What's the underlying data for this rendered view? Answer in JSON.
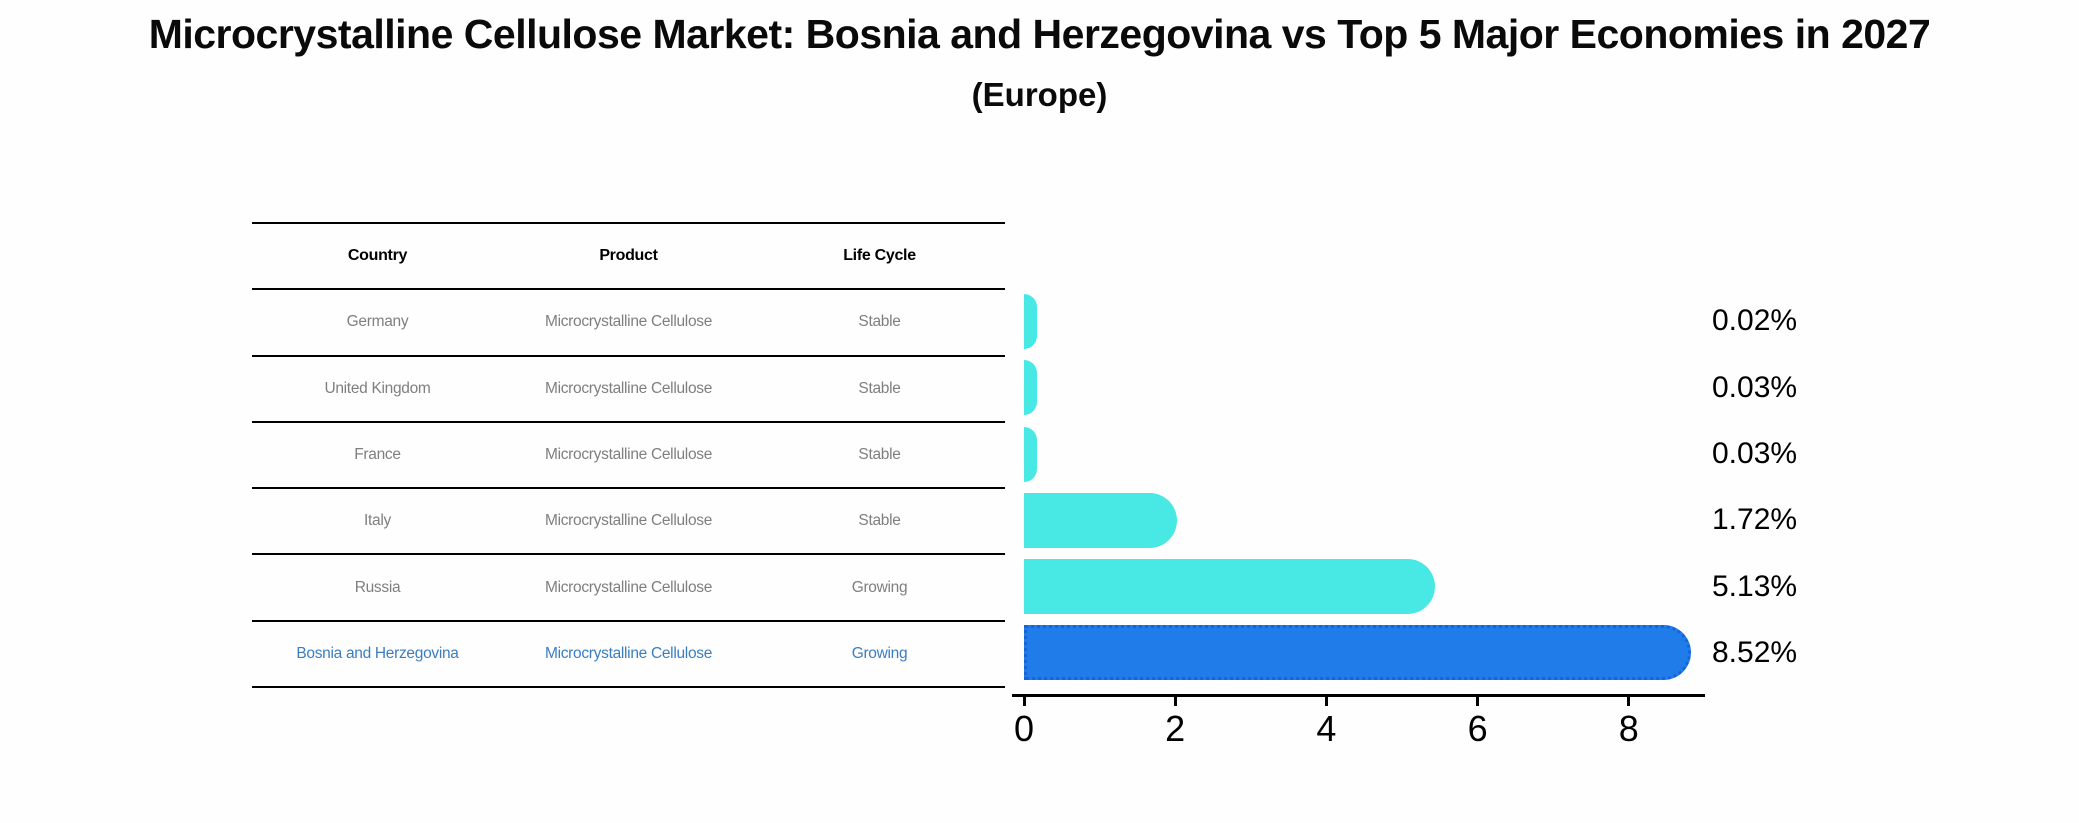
{
  "title": "Microcrystalline Cellulose Market: Bosnia and Herzegovina vs Top 5 Major Economies in 2027",
  "subtitle": "(Europe)",
  "table": {
    "headers": [
      "Country",
      "Product",
      "Life Cycle"
    ],
    "rows": [
      {
        "country": "Germany",
        "product": "Microcrystalline Cellulose",
        "life_cycle": "Stable"
      },
      {
        "country": "United Kingdom",
        "product": "Microcrystalline Cellulose",
        "life_cycle": "Stable"
      },
      {
        "country": "France",
        "product": "Microcrystalline Cellulose",
        "life_cycle": "Stable"
      },
      {
        "country": "Italy",
        "product": "Microcrystalline Cellulose",
        "life_cycle": "Stable"
      },
      {
        "country": "Russia",
        "product": "Microcrystalline Cellulose",
        "life_cycle": "Growing"
      },
      {
        "country": "Bosnia and Herzegovina",
        "product": "Microcrystalline Cellulose",
        "life_cycle": "Growing"
      }
    ],
    "highlight_row_index": 5
  },
  "chart_data": {
    "type": "bar",
    "orientation": "horizontal",
    "title": "Microcrystalline Cellulose Market: Bosnia and Herzegovina vs Top 5 Major Economies in 2027",
    "subtitle": "(Europe)",
    "categories": [
      "Germany",
      "United Kingdom",
      "France",
      "Italy",
      "Russia",
      "Bosnia and Herzegovina"
    ],
    "values": [
      0.02,
      0.03,
      0.03,
      1.72,
      5.13,
      8.52
    ],
    "value_labels": [
      "0.02%",
      "0.03%",
      "0.03%",
      "1.72%",
      "5.13%",
      "8.52%"
    ],
    "x_ticks": [
      0,
      2,
      4,
      6,
      8
    ],
    "xlim": [
      0,
      9
    ],
    "grid": false,
    "legend": false,
    "highlight_index": 5
  },
  "colors": {
    "background": "#fefefe",
    "bar_default": "#48e9e4",
    "bar_highlight": "#1f7ce9",
    "bar_highlight_border": "#1565d6",
    "table_text": "#7f7f7f",
    "table_header_text": "#000000",
    "highlight_text": "#3a7ec2",
    "axis": "#000000"
  }
}
